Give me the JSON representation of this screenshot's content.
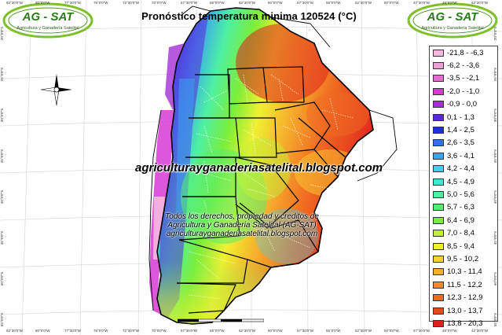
{
  "map": {
    "title": "Pronóstico temperatura minima 120524 (°C)",
    "watermark": "agriculturayganaderiasatelital.blogspot.com",
    "credits": [
      "Todos los derechos, propiedad y creditos de",
      "Agricultura y Ganaderia Satelital (AG-SAT)",
      "agriculturayganaderiasatelital.blogspot.com"
    ]
  },
  "logos": {
    "brand": "AG - SAT",
    "subtitle": "Agricultura y Ganadería Satelital"
  },
  "legend": {
    "items": [
      {
        "label": "-21,8 - -6,3",
        "color": "#f4b8dc"
      },
      {
        "label": "-6,2 - -3,6",
        "color": "#eba0d6"
      },
      {
        "label": "-3,5 - -2,1",
        "color": "#dd6fd0"
      },
      {
        "label": "-2,0 - -1,0",
        "color": "#d63ad2"
      },
      {
        "label": "-0,9 - 0,0",
        "color": "#a52fd6"
      },
      {
        "label": "0,1 - 1,3",
        "color": "#5a2ad8"
      },
      {
        "label": "1,4 - 2,5",
        "color": "#1f2fd8"
      },
      {
        "label": "2,6 - 3,5",
        "color": "#2e72e6"
      },
      {
        "label": "3,6 - 4,1",
        "color": "#3aa2f2"
      },
      {
        "label": "4,2 - 4,4",
        "color": "#3fd0f0"
      },
      {
        "label": "4,5 - 4,9",
        "color": "#3fe8d0"
      },
      {
        "label": "5,0 - 5,6",
        "color": "#4ef0a4"
      },
      {
        "label": "5,7 - 6,3",
        "color": "#58ec6e"
      },
      {
        "label": "6,4 - 6,9",
        "color": "#7cee3a"
      },
      {
        "label": "7,0 - 8,4",
        "color": "#c2f038"
      },
      {
        "label": "8,5 - 9,4",
        "color": "#f0f030"
      },
      {
        "label": "9,5 - 10,2",
        "color": "#f8d030"
      },
      {
        "label": "10,3 - 11,4",
        "color": "#f6ae2c"
      },
      {
        "label": "11,5 - 12,2",
        "color": "#f48a26"
      },
      {
        "label": "12,3 - 12,9",
        "color": "#f06a22"
      },
      {
        "label": "13,0 - 13,7",
        "color": "#ec4820"
      },
      {
        "label": "13,8 - 20,3",
        "color": "#e01e1e"
      }
    ]
  },
  "graticule": {
    "lat_labels": [
      "20°0'0\"S",
      "25°0'0\"S",
      "30°0'0\"S",
      "35°0'0\"S",
      "40°0'0\"S",
      "45°0'0\"S",
      "50°0'0\"S",
      "55°0'0\"S"
    ],
    "lon_labels": [
      "82°30'0\"W",
      "80°0'0\"W",
      "77°30'0\"W",
      "75°0'0\"W",
      "72°30'0\"W",
      "70°0'0\"W",
      "67°30'0\"W",
      "65°0'0\"W",
      "62°30'0\"W",
      "60°0'0\"W",
      "57°30'0\"W",
      "55°0'0\"W",
      "52°30'0\"W",
      "50°0'0\"W",
      "47°30'0\"W",
      "45°0'0\"W",
      "42°30'0\"W"
    ]
  }
}
